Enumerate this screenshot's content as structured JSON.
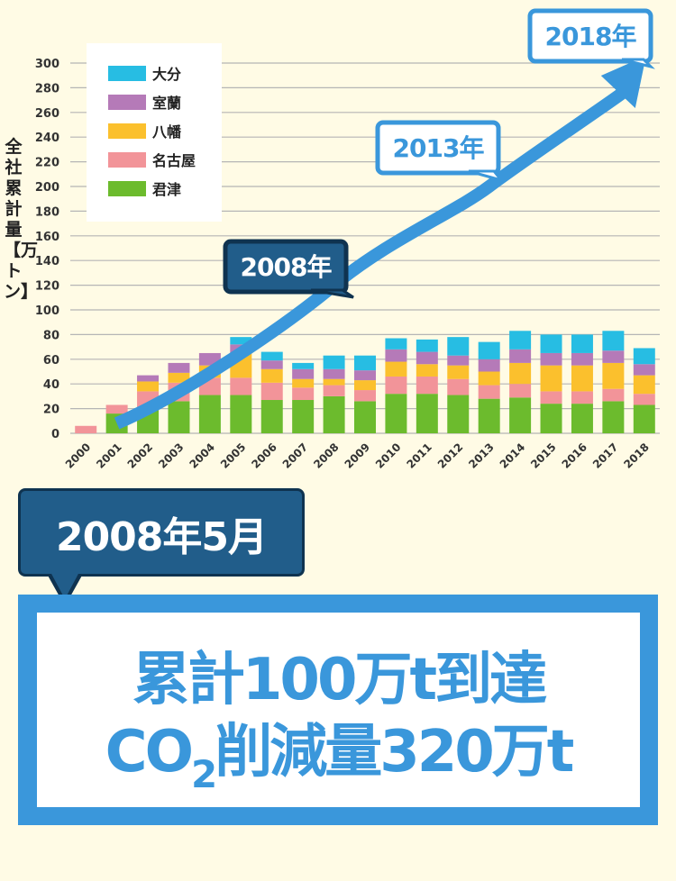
{
  "chart_data": {
    "type": "bar",
    "stacked": true,
    "ylabel": "全社累計量【万トン】",
    "ylim": [
      0,
      300
    ],
    "yticks": [
      0,
      20,
      40,
      60,
      80,
      100,
      120,
      140,
      160,
      180,
      200,
      220,
      240,
      260,
      280,
      300
    ],
    "grid": true,
    "legend_position": "top-left",
    "categories": [
      "2000",
      "2001",
      "2002",
      "2003",
      "2004",
      "2005",
      "2006",
      "2007",
      "2008",
      "2009",
      "2010",
      "2011",
      "2012",
      "2013",
      "2014",
      "2015",
      "2016",
      "2017",
      "2018"
    ],
    "series": [
      {
        "name": "君津",
        "color": "#6cbb2d",
        "values": [
          0,
          16,
          20,
          26,
          31,
          31,
          27,
          27,
          30,
          26,
          32,
          32,
          31,
          28,
          29,
          24,
          24,
          26,
          23
        ]
      },
      {
        "name": "名古屋",
        "color": "#f29499",
        "values": [
          6,
          7,
          14,
          15,
          14,
          14,
          14,
          10,
          9,
          9,
          14,
          14,
          13,
          11,
          11,
          10,
          10,
          10,
          9
        ]
      },
      {
        "name": "八幡",
        "color": "#fbc02d",
        "values": [
          0,
          0,
          8,
          8,
          10,
          20,
          11,
          7,
          5,
          8,
          12,
          10,
          11,
          11,
          17,
          21,
          21,
          21,
          15
        ]
      },
      {
        "name": "室蘭",
        "color": "#b57ab8",
        "values": [
          0,
          0,
          5,
          8,
          10,
          7,
          7,
          8,
          8,
          8,
          10,
          10,
          8,
          10,
          11,
          10,
          10,
          10,
          9
        ]
      },
      {
        "name": "大分",
        "color": "#27bde3",
        "values": [
          0,
          0,
          0,
          0,
          0,
          6,
          7,
          5,
          11,
          12,
          9,
          10,
          15,
          14,
          15,
          15,
          15,
          16,
          13
        ]
      }
    ],
    "cumulative_annotations": [
      {
        "label": "2008年",
        "year": "2008",
        "value": 120
      },
      {
        "label": "2013年",
        "year": "2013",
        "value": 200
      },
      {
        "label": "2018年",
        "year": "2018",
        "value": 300
      }
    ]
  },
  "colors": {
    "background": "#fffbe5",
    "arrow": "#3a97db",
    "callout_dark": "#215d8a",
    "result_blue": "#3a97db"
  },
  "callout": {
    "date": "2008年5月"
  },
  "result": {
    "line1": "累計100万t到達",
    "line2_prefix": "CO",
    "line2_sub": "2",
    "line2_suffix": "削減量320万t"
  }
}
